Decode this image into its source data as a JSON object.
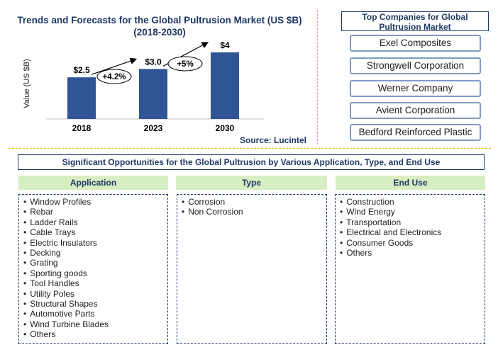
{
  "chart_data": {
    "type": "bar",
    "title": "Trends and Forecasts for the Global Pultrusion Market (US $B)",
    "subtitle": "(2018-2030)",
    "ylabel": "Value (US $B)",
    "categories": [
      "2018",
      "2023",
      "2030"
    ],
    "values": [
      2.5,
      3.0,
      4.0
    ],
    "data_labels": [
      "$2.5",
      "$3.0",
      "$4"
    ],
    "growth_annotations": [
      "+4.2%",
      "+5%"
    ],
    "bar_color": "#2f5597",
    "ylim": [
      0,
      5.1
    ],
    "source": "Source: Lucintel"
  },
  "companies": {
    "header": "Top Companies for Global Pultrusion Market",
    "items": [
      "Exel Composites",
      "Strongwell Corporation",
      "Werner Company",
      "Avient Corporation",
      "Bedford Reinforced Plastic"
    ]
  },
  "opportunities": {
    "title": "Significant Opportunities for the Global Pultrusion by Various Application, Type, and End Use",
    "application": {
      "heading": "Application",
      "items": [
        "Window Profiles",
        "Rebar",
        "Ladder Rails",
        "Cable Trays",
        "Electric Insulators",
        "Decking",
        "Grating",
        "Sporting goods",
        "Tool Handles",
        "Utility Poles",
        "Structural Shapes",
        "Automotive Parts",
        "Wind Turbine Blades",
        "Others"
      ]
    },
    "type": {
      "heading": "Type",
      "items": [
        "Corrosion",
        "Non Corrosion"
      ]
    },
    "end_use": {
      "heading": "End Use",
      "items": [
        "Construction",
        "Wind Energy",
        "Transportation",
        "Electrical and Electronics",
        "Consumer Goods",
        "Others"
      ]
    }
  },
  "colors": {
    "accent": "#1f3864",
    "header_fill": "#d7eec3",
    "divider": "#f0b400"
  }
}
